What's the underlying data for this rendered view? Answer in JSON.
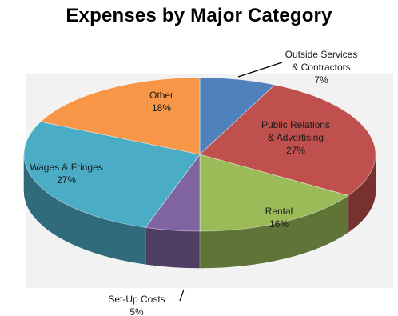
{
  "chart_data": {
    "type": "pie",
    "title": "Expenses by Major Category",
    "three_d": true,
    "legend": "none",
    "slices": [
      {
        "name": "Outside Services & Contractors",
        "label_lines": [
          "Outside Services",
          "& Contractors"
        ],
        "value_label": "7%",
        "value": 7,
        "color": "#4f81bd"
      },
      {
        "name": "Public Relations & Advertising",
        "label_lines": [
          "Public Relations",
          "& Advertising"
        ],
        "value_label": "27%",
        "value": 27,
        "color": "#c0504d"
      },
      {
        "name": "Rental",
        "label_lines": [
          "Rental"
        ],
        "value_label": "16%",
        "value": 16,
        "color": "#9bbb59"
      },
      {
        "name": "Set-Up Costs",
        "label_lines": [
          "Set-Up Costs"
        ],
        "value_label": "5%",
        "value": 5,
        "color": "#8064a2"
      },
      {
        "name": "Wages & Fringes",
        "label_lines": [
          "Wages & Fringes"
        ],
        "value_label": "27%",
        "value": 27,
        "color": "#4bacc6"
      },
      {
        "name": "Other",
        "label_lines": [
          "Other"
        ],
        "value_label": "18%",
        "value": 18,
        "color": "#f79646"
      }
    ]
  }
}
